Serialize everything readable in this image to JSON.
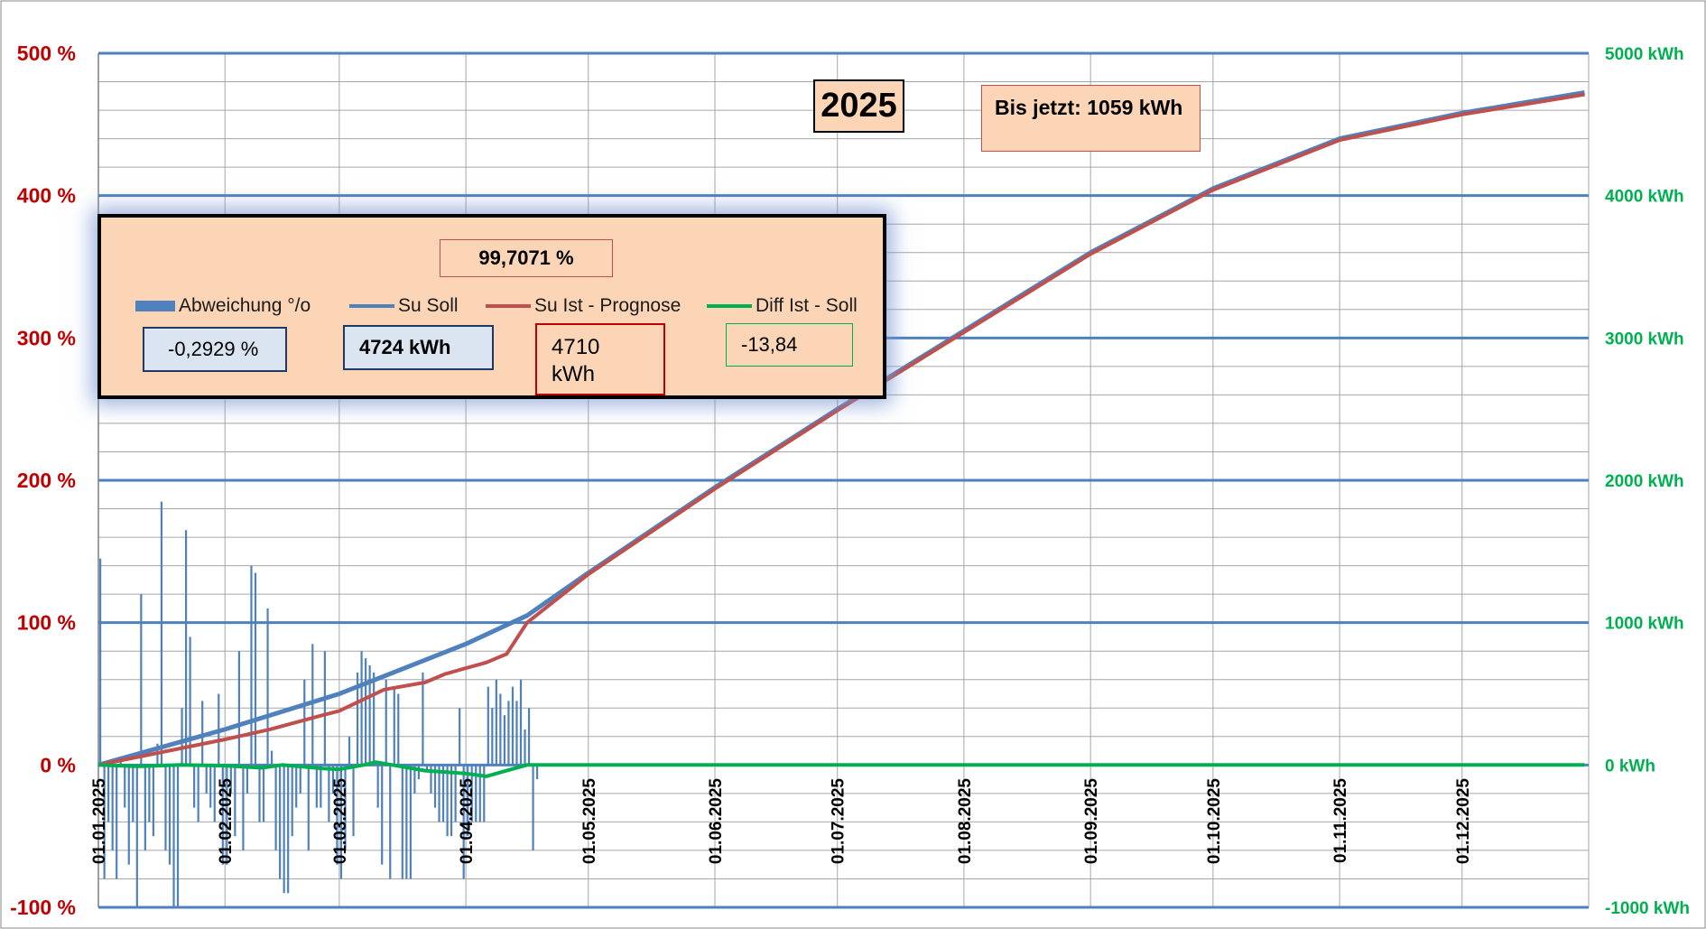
{
  "title_box": "2025",
  "total_box": "Bis jetzt: 1059 kWh",
  "percent_box": "99,7071 %",
  "legend": [
    {
      "name": "Abweichung °/o",
      "color": "#4f81bd",
      "kind": "bar"
    },
    {
      "name": "Su Soll",
      "color": "#4f81bd",
      "kind": "line"
    },
    {
      "name": "Su Ist - Prognose",
      "color": "#c0504d",
      "kind": "line"
    },
    {
      "name": "Diff Ist - Soll",
      "color": "#00b050",
      "kind": "line"
    }
  ],
  "values": {
    "abweichung": "-0,2929 %",
    "su_soll": "4724 kWh",
    "su_ist": "4710 kWh",
    "diff": "-13,84"
  },
  "chart_data": {
    "type": "line",
    "x_ticks": [
      "01.01.2025",
      "01.02.2025",
      "01.03.2025",
      "01.04.2025",
      "01.05.2025",
      "01.06.2025",
      "01.07.2025",
      "01.08.2025",
      "01.09.2025",
      "01.10.2025",
      "01.11.2025",
      "01.12.2025"
    ],
    "y_left": {
      "ticks": [
        "500 %",
        "400 %",
        "300 %",
        "200 %",
        "100 %",
        "0 %",
        "-100 %"
      ],
      "range": [
        -100,
        500
      ],
      "color": "#c00000"
    },
    "y_right": {
      "ticks": [
        "5000 kWh",
        "4000 kWh",
        "3000 kWh",
        "2000 kWh",
        "1000 kWh",
        "0 kWh",
        "-1000 kWh"
      ],
      "range": [
        -1000,
        5000
      ],
      "color": "#00b050"
    },
    "grid": true,
    "series": [
      {
        "name": "Su Soll",
        "axis": "right",
        "color": "#4f81bd",
        "points": [
          [
            0,
            0
          ],
          [
            31,
            250
          ],
          [
            59,
            500
          ],
          [
            90,
            850
          ],
          [
            105,
            1050
          ],
          [
            120,
            1350
          ],
          [
            151,
            1950
          ],
          [
            181,
            2500
          ],
          [
            212,
            3050
          ],
          [
            243,
            3600
          ],
          [
            273,
            4050
          ],
          [
            304,
            4400
          ],
          [
            334,
            4580
          ],
          [
            364,
            4724
          ]
        ]
      },
      {
        "name": "Su Ist - Prognose",
        "axis": "right",
        "color": "#c0504d",
        "points": [
          [
            0,
            0
          ],
          [
            31,
            180
          ],
          [
            42,
            250
          ],
          [
            55,
            350
          ],
          [
            59,
            380
          ],
          [
            70,
            530
          ],
          [
            80,
            580
          ],
          [
            85,
            640
          ],
          [
            95,
            720
          ],
          [
            100,
            780
          ],
          [
            105,
            1000
          ],
          [
            120,
            1340
          ],
          [
            151,
            1940
          ],
          [
            181,
            2490
          ],
          [
            212,
            3040
          ],
          [
            243,
            3590
          ],
          [
            273,
            4040
          ],
          [
            304,
            4390
          ],
          [
            334,
            4570
          ],
          [
            364,
            4710
          ]
        ]
      },
      {
        "name": "Diff Ist - Soll",
        "axis": "right",
        "color": "#00b050",
        "points": [
          [
            0,
            0
          ],
          [
            10,
            -10
          ],
          [
            20,
            0
          ],
          [
            31,
            -5
          ],
          [
            40,
            -20
          ],
          [
            45,
            0
          ],
          [
            55,
            -25
          ],
          [
            59,
            -30
          ],
          [
            65,
            0
          ],
          [
            68,
            20
          ],
          [
            72,
            0
          ],
          [
            80,
            -40
          ],
          [
            90,
            -60
          ],
          [
            95,
            -80
          ],
          [
            100,
            -40
          ],
          [
            105,
            0
          ],
          [
            364,
            0
          ]
        ]
      },
      {
        "name": "Abweichung °/o",
        "axis": "left",
        "color": "#4f81bd",
        "type": "bar",
        "points": [
          [
            0,
            145
          ],
          [
            1,
            -80
          ],
          [
            2,
            -40
          ],
          [
            3,
            -60
          ],
          [
            4,
            -80
          ],
          [
            5,
            5
          ],
          [
            6,
            -30
          ],
          [
            7,
            -70
          ],
          [
            8,
            -40
          ],
          [
            9,
            -100
          ],
          [
            10,
            120
          ],
          [
            11,
            -60
          ],
          [
            12,
            -40
          ],
          [
            13,
            -50
          ],
          [
            14,
            15
          ],
          [
            15,
            185
          ],
          [
            16,
            -60
          ],
          [
            17,
            -70
          ],
          [
            18,
            -100
          ],
          [
            19,
            -100
          ],
          [
            20,
            40
          ],
          [
            21,
            165
          ],
          [
            22,
            90
          ],
          [
            23,
            -30
          ],
          [
            24,
            -40
          ],
          [
            25,
            45
          ],
          [
            26,
            -20
          ],
          [
            27,
            -30
          ],
          [
            28,
            -40
          ],
          [
            29,
            50
          ],
          [
            30,
            -70
          ],
          [
            31,
            -70
          ],
          [
            32,
            -20
          ],
          [
            33,
            -50
          ],
          [
            34,
            80
          ],
          [
            35,
            -60
          ],
          [
            36,
            -20
          ],
          [
            37,
            140
          ],
          [
            38,
            135
          ],
          [
            39,
            -40
          ],
          [
            40,
            -40
          ],
          [
            41,
            110
          ],
          [
            42,
            10
          ],
          [
            43,
            -60
          ],
          [
            44,
            -80
          ],
          [
            45,
            -90
          ],
          [
            46,
            -90
          ],
          [
            47,
            -50
          ],
          [
            48,
            -30
          ],
          [
            49,
            -20
          ],
          [
            50,
            60
          ],
          [
            51,
            -60
          ],
          [
            52,
            85
          ],
          [
            53,
            -30
          ],
          [
            54,
            -30
          ],
          [
            55,
            80
          ],
          [
            56,
            -40
          ],
          [
            57,
            -20
          ],
          [
            58,
            -70
          ],
          [
            59,
            -80
          ],
          [
            60,
            -60
          ],
          [
            61,
            20
          ],
          [
            62,
            -50
          ],
          [
            63,
            65
          ],
          [
            64,
            80
          ],
          [
            65,
            75
          ],
          [
            66,
            70
          ],
          [
            67,
            65
          ],
          [
            68,
            -30
          ],
          [
            69,
            -70
          ],
          [
            70,
            60
          ],
          [
            71,
            -80
          ],
          [
            72,
            55
          ],
          [
            73,
            50
          ],
          [
            74,
            -80
          ],
          [
            75,
            -80
          ],
          [
            76,
            -80
          ],
          [
            77,
            -20
          ],
          [
            78,
            -10
          ],
          [
            79,
            65
          ],
          [
            80,
            -5
          ],
          [
            81,
            -20
          ],
          [
            82,
            -30
          ],
          [
            83,
            -40
          ],
          [
            84,
            -40
          ],
          [
            85,
            -50
          ],
          [
            86,
            -50
          ],
          [
            87,
            -40
          ],
          [
            88,
            40
          ],
          [
            89,
            -80
          ],
          [
            90,
            -50
          ],
          [
            91,
            -40
          ],
          [
            92,
            -40
          ],
          [
            93,
            -40
          ],
          [
            94,
            -40
          ],
          [
            95,
            55
          ],
          [
            96,
            40
          ],
          [
            97,
            60
          ],
          [
            98,
            50
          ],
          [
            99,
            35
          ],
          [
            100,
            45
          ],
          [
            101,
            55
          ],
          [
            102,
            45
          ],
          [
            103,
            60
          ],
          [
            104,
            25
          ],
          [
            105,
            40
          ],
          [
            106,
            -60
          ],
          [
            107,
            -10
          ]
        ]
      }
    ]
  }
}
